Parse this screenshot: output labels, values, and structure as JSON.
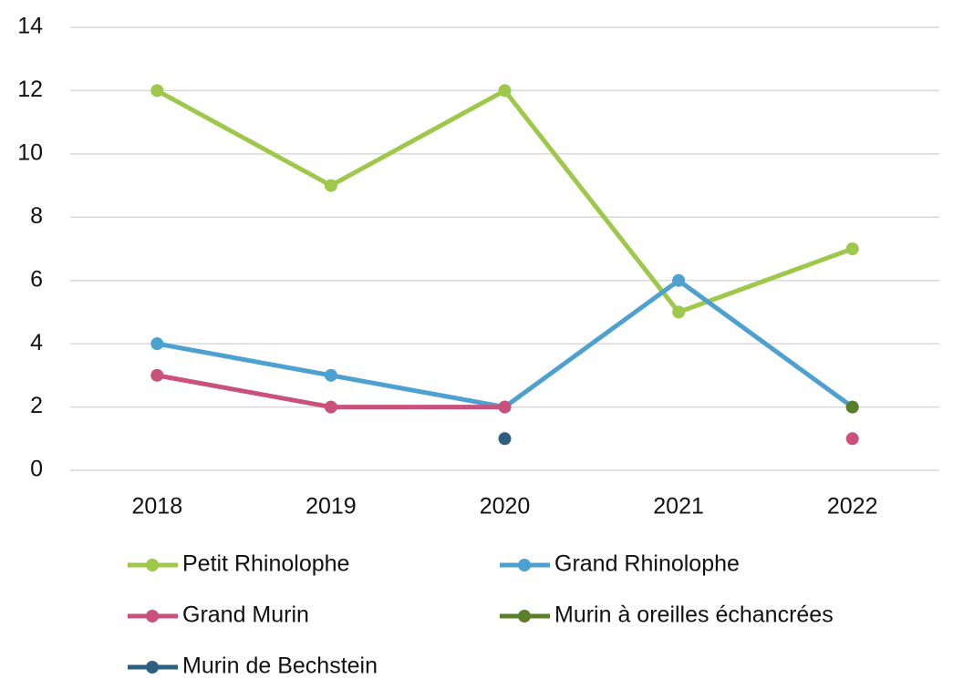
{
  "chart_data": {
    "type": "line",
    "categories": [
      "2018",
      "2019",
      "2020",
      "2021",
      "2022"
    ],
    "series": [
      {
        "name": "Petit Rhinolophe",
        "color": "#9dc84a",
        "values": [
          12,
          9,
          12,
          5,
          7
        ]
      },
      {
        "name": "Grand Rhinolophe",
        "color": "#4da1d1",
        "values": [
          4,
          3,
          2,
          6,
          2
        ]
      },
      {
        "name": "Grand Murin",
        "color": "#c9517b",
        "values": [
          3,
          2,
          2,
          null,
          1
        ]
      },
      {
        "name": "Murin à oreilles échancrées",
        "color": "#5a7f2b",
        "values": [
          null,
          null,
          null,
          null,
          2
        ]
      },
      {
        "name": "Murin de Bechstein",
        "color": "#2c5f80",
        "values": [
          null,
          null,
          1,
          null,
          null
        ]
      }
    ],
    "ylim": [
      0,
      14
    ],
    "yticks": [
      0,
      2,
      4,
      6,
      8,
      10,
      12,
      14
    ],
    "grid": true,
    "legend": "bottom"
  }
}
